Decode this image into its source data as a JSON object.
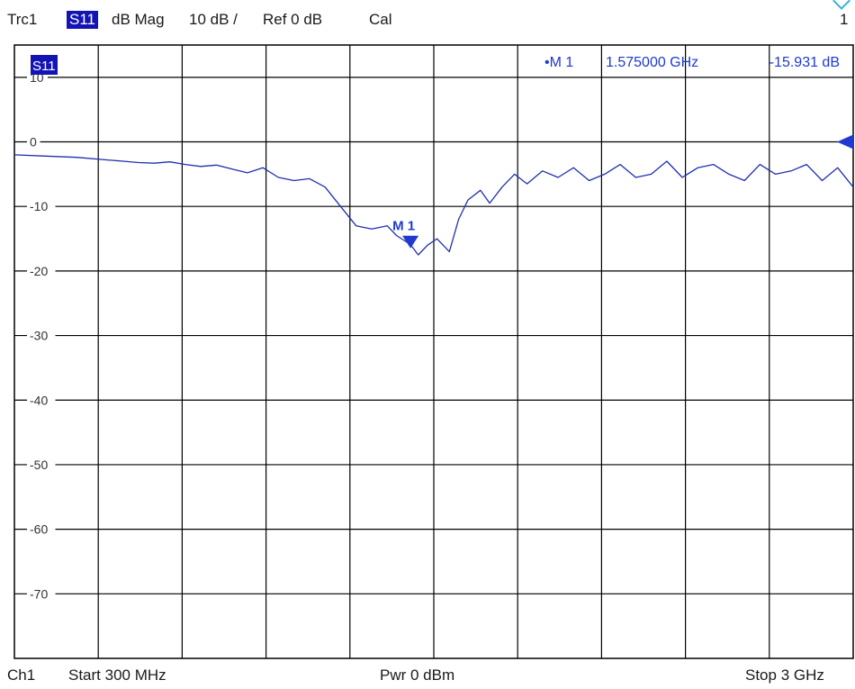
{
  "header": {
    "trace": "Trc1",
    "param": "S11",
    "format": "dB Mag",
    "scale": "10 dB /",
    "ref": "Ref 0 dB",
    "cal": "Cal",
    "channel_index": "1"
  },
  "footer": {
    "channel": "Ch1",
    "start": "Start  300 MHz",
    "power": "Pwr  0 dBm",
    "stop": "Stop  3 GHz"
  },
  "colors": {
    "trace": "#1f2fb0",
    "marker": "#1f3ad0",
    "grid": "#000000",
    "label_bg": "#1414b4"
  },
  "icons": {
    "corner": "chevron-down-icon"
  },
  "chart_data": {
    "type": "line",
    "trace_label": "S11",
    "xlim": [
      0.3,
      3.0
    ],
    "x_unit": "GHz",
    "ylim": [
      -80,
      15
    ],
    "y_ticks": [
      10,
      0,
      -10,
      -20,
      -30,
      -40,
      -50,
      -60,
      -70
    ],
    "y_tick_labels": [
      "10",
      "0",
      "-10",
      "-20",
      "-30",
      "-40",
      "-50",
      "-60",
      "-70"
    ],
    "grid": true,
    "reference_level": 0,
    "series": [
      {
        "x": [
          0.3,
          0.4,
          0.5,
          0.6,
          0.65,
          0.7,
          0.75,
          0.8,
          0.85,
          0.9,
          0.95,
          1.0,
          1.05,
          1.1,
          1.15,
          1.2,
          1.25,
          1.3,
          1.35,
          1.4,
          1.45,
          1.5,
          1.53,
          1.575,
          1.6,
          1.63,
          1.66,
          1.7,
          1.73,
          1.76,
          1.8,
          1.83,
          1.87,
          1.91,
          1.95,
          2.0,
          2.05,
          2.1,
          2.15,
          2.2,
          2.25,
          2.3,
          2.35,
          2.4,
          2.45,
          2.5,
          2.55,
          2.6,
          2.65,
          2.7,
          2.75,
          2.8,
          2.85,
          2.9,
          2.95,
          3.0
        ],
        "y": [
          -2.0,
          -2.2,
          -2.4,
          -2.8,
          -3.0,
          -3.2,
          -3.3,
          -3.1,
          -3.5,
          -3.8,
          -3.6,
          -4.2,
          -4.8,
          -4.0,
          -5.5,
          -6.0,
          -5.7,
          -7.0,
          -10.0,
          -13.0,
          -13.5,
          -13.0,
          -14.5,
          -15.9,
          -17.5,
          -16.0,
          -15.0,
          -17.0,
          -12.0,
          -9.0,
          -7.5,
          -9.5,
          -7.0,
          -5.0,
          -6.5,
          -4.5,
          -5.5,
          -4.0,
          -6.0,
          -5.0,
          -3.5,
          -5.5,
          -5.0,
          -3.0,
          -5.5,
          -4.0,
          -3.5,
          -5.0,
          -6.0,
          -3.5,
          -5.0,
          -4.5,
          -3.5,
          -6.0,
          -4.0,
          -7.0
        ]
      }
    ],
    "marker": {
      "name": "M 1",
      "x": 1.575,
      "y": -15.931,
      "readout_symbol": "•M 1",
      "readout_freq": "1.575000 GHz",
      "readout_value": "-15.931 dB"
    }
  }
}
